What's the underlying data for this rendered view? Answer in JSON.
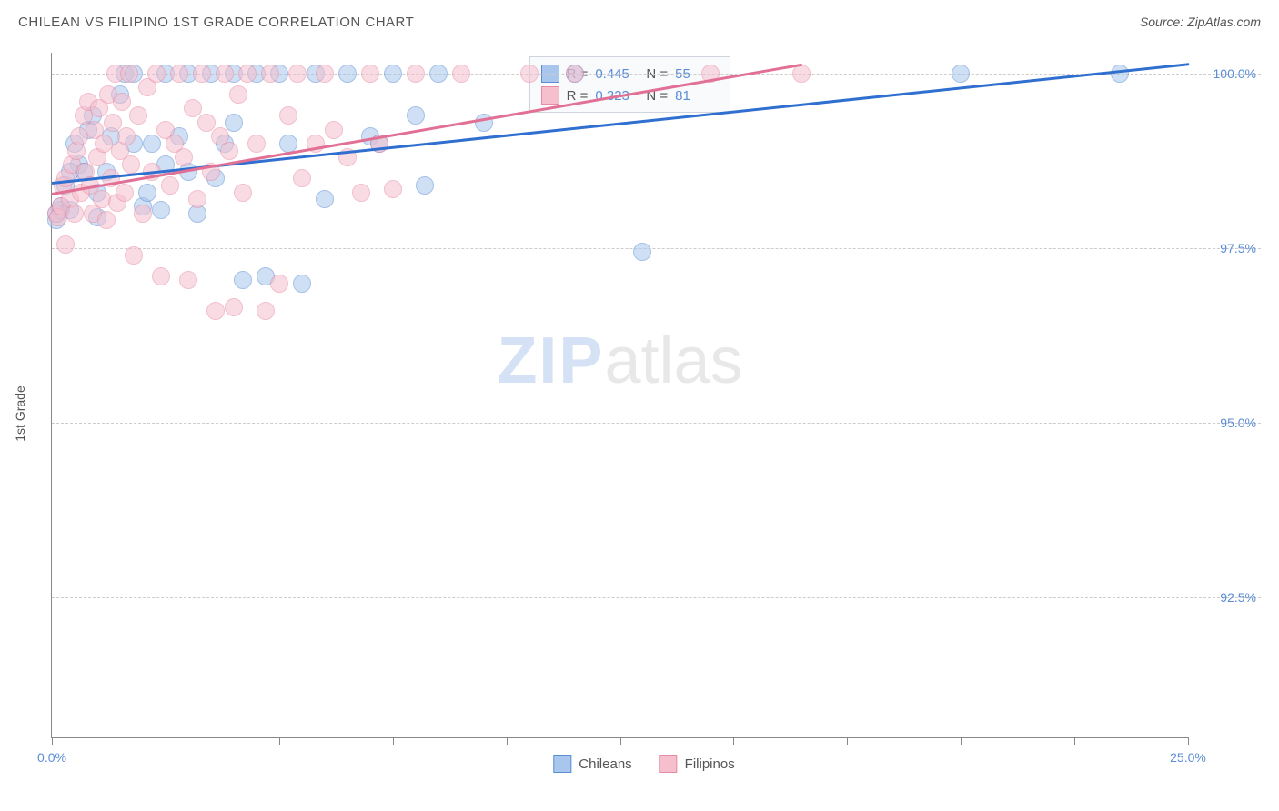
{
  "title": "CHILEAN VS FILIPINO 1ST GRADE CORRELATION CHART",
  "source": "Source: ZipAtlas.com",
  "watermark": {
    "zip": "ZIP",
    "atlas": "atlas"
  },
  "chart": {
    "type": "scatter",
    "y_axis_label": "1st Grade",
    "xlim": [
      0,
      25
    ],
    "ylim": [
      90.5,
      100.3
    ],
    "x_ticks": [
      0,
      2.5,
      5,
      7.5,
      10,
      12.5,
      15,
      17.5,
      20,
      22.5,
      25
    ],
    "x_tick_labels": {
      "0": "0.0%",
      "25": "25.0%"
    },
    "y_ticks": [
      92.5,
      95.0,
      97.5,
      100.0
    ],
    "y_tick_labels": {
      "92.5": "92.5%",
      "95.0": "95.0%",
      "97.5": "97.5%",
      "100.0": "100.0%"
    },
    "gridline_color": "#cccccc",
    "axis_color": "#888888",
    "background_color": "#ffffff",
    "tick_label_color": "#5b8dd6",
    "axis_label_color": "#555555",
    "series": [
      {
        "name": "Chileans",
        "fill": "#a9c7ec",
        "stroke": "#5b8dd6",
        "trend_color": "#2f6fd0",
        "trend": {
          "x1": 0,
          "y1": 98.45,
          "x2": 25,
          "y2": 100.15
        },
        "R": "0.445",
        "N": "55",
        "points": [
          [
            0.1,
            97.9
          ],
          [
            0.1,
            98.0
          ],
          [
            0.2,
            98.05
          ],
          [
            0.3,
            98.4
          ],
          [
            0.2,
            98.1
          ],
          [
            0.4,
            98.05
          ],
          [
            0.5,
            99.0
          ],
          [
            0.6,
            98.7
          ],
          [
            0.7,
            98.6
          ],
          [
            0.8,
            99.2
          ],
          [
            0.9,
            99.4
          ],
          [
            1.0,
            98.3
          ],
          [
            1.2,
            98.6
          ],
          [
            1.3,
            99.1
          ],
          [
            1.5,
            99.7
          ],
          [
            1.6,
            100.0
          ],
          [
            1.8,
            100.0
          ],
          [
            2.0,
            98.1
          ],
          [
            2.1,
            98.3
          ],
          [
            2.2,
            99.0
          ],
          [
            2.4,
            98.05
          ],
          [
            2.5,
            100.0
          ],
          [
            2.8,
            99.1
          ],
          [
            3.0,
            100.0
          ],
          [
            3.2,
            98.0
          ],
          [
            3.5,
            100.0
          ],
          [
            3.8,
            99.0
          ],
          [
            4.0,
            100.0
          ],
          [
            4.2,
            97.05
          ],
          [
            4.5,
            100.0
          ],
          [
            4.7,
            97.1
          ],
          [
            5.0,
            100.0
          ],
          [
            5.2,
            99.0
          ],
          [
            5.5,
            97.0
          ],
          [
            5.8,
            100.0
          ],
          [
            6.0,
            98.2
          ],
          [
            6.5,
            100.0
          ],
          [
            7.0,
            99.1
          ],
          [
            7.2,
            99.0
          ],
          [
            7.5,
            100.0
          ],
          [
            8.0,
            99.4
          ],
          [
            8.2,
            98.4
          ],
          [
            8.5,
            100.0
          ],
          [
            9.5,
            99.3
          ],
          [
            11.5,
            100.0
          ],
          [
            13.0,
            97.45
          ],
          [
            20.0,
            100.0
          ],
          [
            23.5,
            100.0
          ],
          [
            2.5,
            98.7
          ],
          [
            3.0,
            98.6
          ],
          [
            3.6,
            98.5
          ],
          [
            4.0,
            99.3
          ],
          [
            1.8,
            99.0
          ],
          [
            0.4,
            98.6
          ],
          [
            1.0,
            97.95
          ]
        ]
      },
      {
        "name": "Filipinos",
        "fill": "#f5bfcd",
        "stroke": "#e88ba5",
        "trend_color": "#e27095",
        "trend": {
          "x1": 0,
          "y1": 98.3,
          "x2": 16.5,
          "y2": 100.15
        },
        "R": "0.323",
        "N": "81",
        "points": [
          [
            0.1,
            98.0
          ],
          [
            0.15,
            97.95
          ],
          [
            0.2,
            98.1
          ],
          [
            0.25,
            98.4
          ],
          [
            0.3,
            98.5
          ],
          [
            0.3,
            97.55
          ],
          [
            0.4,
            98.2
          ],
          [
            0.45,
            98.7
          ],
          [
            0.5,
            98.0
          ],
          [
            0.55,
            98.9
          ],
          [
            0.6,
            99.1
          ],
          [
            0.65,
            98.3
          ],
          [
            0.7,
            99.4
          ],
          [
            0.75,
            98.6
          ],
          [
            0.8,
            99.6
          ],
          [
            0.85,
            98.4
          ],
          [
            0.9,
            98.0
          ],
          [
            0.95,
            99.2
          ],
          [
            1.0,
            98.8
          ],
          [
            1.05,
            99.5
          ],
          [
            1.1,
            98.2
          ],
          [
            1.15,
            99.0
          ],
          [
            1.2,
            97.9
          ],
          [
            1.25,
            99.7
          ],
          [
            1.3,
            98.5
          ],
          [
            1.35,
            99.3
          ],
          [
            1.4,
            100.0
          ],
          [
            1.45,
            98.15
          ],
          [
            1.5,
            98.9
          ],
          [
            1.55,
            99.6
          ],
          [
            1.6,
            98.3
          ],
          [
            1.65,
            99.1
          ],
          [
            1.7,
            100.0
          ],
          [
            1.75,
            98.7
          ],
          [
            1.8,
            97.4
          ],
          [
            1.9,
            99.4
          ],
          [
            2.0,
            98.0
          ],
          [
            2.1,
            99.8
          ],
          [
            2.2,
            98.6
          ],
          [
            2.3,
            100.0
          ],
          [
            2.4,
            97.1
          ],
          [
            2.5,
            99.2
          ],
          [
            2.6,
            98.4
          ],
          [
            2.7,
            99.0
          ],
          [
            2.8,
            100.0
          ],
          [
            2.9,
            98.8
          ],
          [
            3.0,
            97.05
          ],
          [
            3.1,
            99.5
          ],
          [
            3.2,
            98.2
          ],
          [
            3.3,
            100.0
          ],
          [
            3.4,
            99.3
          ],
          [
            3.5,
            98.6
          ],
          [
            3.6,
            96.6
          ],
          [
            3.7,
            99.1
          ],
          [
            3.8,
            100.0
          ],
          [
            3.9,
            98.9
          ],
          [
            4.0,
            96.65
          ],
          [
            4.1,
            99.7
          ],
          [
            4.2,
            98.3
          ],
          [
            4.3,
            100.0
          ],
          [
            4.5,
            99.0
          ],
          [
            4.7,
            96.6
          ],
          [
            4.8,
            100.0
          ],
          [
            5.0,
            97.0
          ],
          [
            5.2,
            99.4
          ],
          [
            5.4,
            100.0
          ],
          [
            5.5,
            98.5
          ],
          [
            5.8,
            99.0
          ],
          [
            6.0,
            100.0
          ],
          [
            6.2,
            99.2
          ],
          [
            6.5,
            98.8
          ],
          [
            6.8,
            98.3
          ],
          [
            7.0,
            100.0
          ],
          [
            7.2,
            99.0
          ],
          [
            7.5,
            98.35
          ],
          [
            8.0,
            100.0
          ],
          [
            9.0,
            100.0
          ],
          [
            10.5,
            100.0
          ],
          [
            11.5,
            100.0
          ],
          [
            14.5,
            100.0
          ],
          [
            16.5,
            100.0
          ]
        ]
      }
    ]
  },
  "legend": [
    {
      "label": "Chileans",
      "fill": "#a9c7ec",
      "stroke": "#5b8dd6"
    },
    {
      "label": "Filipinos",
      "fill": "#f5bfcd",
      "stroke": "#e88ba5"
    }
  ]
}
